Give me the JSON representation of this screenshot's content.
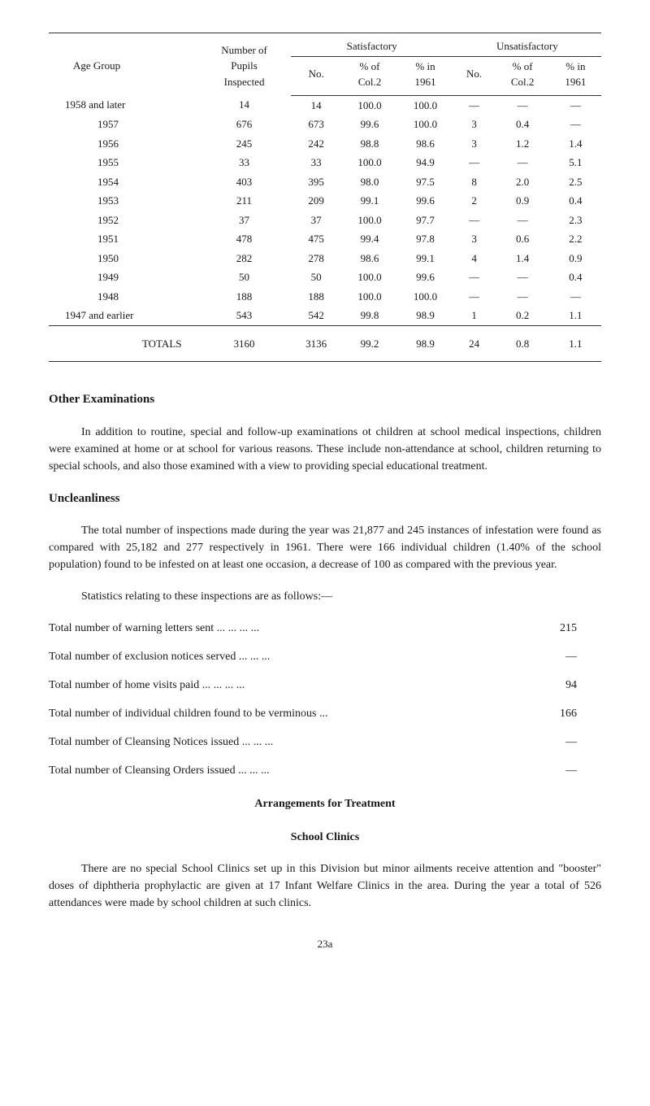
{
  "table": {
    "headers": {
      "age_group": "Age Group",
      "pupils": "Number of\nPupils\nInspected",
      "satisfactory": "Satisfactory",
      "unsatisfactory": "Unsatisfactory",
      "no": "No.",
      "pct_of": "% of\nCol.2",
      "pct_in": "% in\n1961"
    },
    "rows": [
      {
        "age": "1958 and later",
        "pupils": "14",
        "sat_no": "14",
        "sat_pct_of": "100.0",
        "sat_pct_in": "100.0",
        "unsat_no": "—",
        "unsat_pct_of": "—",
        "unsat_pct_in": "—"
      },
      {
        "age": "1957",
        "pupils": "676",
        "sat_no": "673",
        "sat_pct_of": "99.6",
        "sat_pct_in": "100.0",
        "unsat_no": "3",
        "unsat_pct_of": "0.4",
        "unsat_pct_in": "—"
      },
      {
        "age": "1956",
        "pupils": "245",
        "sat_no": "242",
        "sat_pct_of": "98.8",
        "sat_pct_in": "98.6",
        "unsat_no": "3",
        "unsat_pct_of": "1.2",
        "unsat_pct_in": "1.4"
      },
      {
        "age": "1955",
        "pupils": "33",
        "sat_no": "33",
        "sat_pct_of": "100.0",
        "sat_pct_in": "94.9",
        "unsat_no": "—",
        "unsat_pct_of": "—",
        "unsat_pct_in": "5.1"
      },
      {
        "age": "1954",
        "pupils": "403",
        "sat_no": "395",
        "sat_pct_of": "98.0",
        "sat_pct_in": "97.5",
        "unsat_no": "8",
        "unsat_pct_of": "2.0",
        "unsat_pct_in": "2.5"
      },
      {
        "age": "1953",
        "pupils": "211",
        "sat_no": "209",
        "sat_pct_of": "99.1",
        "sat_pct_in": "99.6",
        "unsat_no": "2",
        "unsat_pct_of": "0.9",
        "unsat_pct_in": "0.4"
      },
      {
        "age": "1952",
        "pupils": "37",
        "sat_no": "37",
        "sat_pct_of": "100.0",
        "sat_pct_in": "97.7",
        "unsat_no": "—",
        "unsat_pct_of": "—",
        "unsat_pct_in": "2.3"
      },
      {
        "age": "1951",
        "pupils": "478",
        "sat_no": "475",
        "sat_pct_of": "99.4",
        "sat_pct_in": "97.8",
        "unsat_no": "3",
        "unsat_pct_of": "0.6",
        "unsat_pct_in": "2.2"
      },
      {
        "age": "1950",
        "pupils": "282",
        "sat_no": "278",
        "sat_pct_of": "98.6",
        "sat_pct_in": "99.1",
        "unsat_no": "4",
        "unsat_pct_of": "1.4",
        "unsat_pct_in": "0.9"
      },
      {
        "age": "1949",
        "pupils": "50",
        "sat_no": "50",
        "sat_pct_of": "100.0",
        "sat_pct_in": "99.6",
        "unsat_no": "—",
        "unsat_pct_of": "—",
        "unsat_pct_in": "0.4"
      },
      {
        "age": "1948",
        "pupils": "188",
        "sat_no": "188",
        "sat_pct_of": "100.0",
        "sat_pct_in": "100.0",
        "unsat_no": "—",
        "unsat_pct_of": "—",
        "unsat_pct_in": "—"
      },
      {
        "age": "1947 and earlier",
        "pupils": "543",
        "sat_no": "542",
        "sat_pct_of": "99.8",
        "sat_pct_in": "98.9",
        "unsat_no": "1",
        "unsat_pct_of": "0.2",
        "unsat_pct_in": "1.1"
      }
    ],
    "totals": {
      "label": "TOTALS",
      "pupils": "3160",
      "sat_no": "3136",
      "sat_pct_of": "99.2",
      "sat_pct_in": "98.9",
      "unsat_no": "24",
      "unsat_pct_of": "0.8",
      "unsat_pct_in": "1.1"
    }
  },
  "sections": {
    "other_exams_title": "Other Examinations",
    "other_exams_text": "In addition to routine, special and follow-up examinations ot children at school medical inspections, children were examined at home or at school for various reasons. These include non-attendance at school, children returning to special schools, and also those examined with a view to providing special educational treatment.",
    "uncleanliness_title": "Uncleanliness",
    "uncleanliness_text": "The total number of inspections made during the year was 21,877 and 245 instances of infestation were found as compared with 25,182 and 277 respectively in 1961. There were 166 individual children (1.40% of the school population) found to be infested on at least one occasion, a decrease of 100 as compared with the previous year.",
    "stats_intro": "Statistics relating to these inspections are as follows:—",
    "arrangements_title": "Arrangements for Treatment",
    "school_clinics_title": "School Clinics",
    "clinics_text": "There are no special School Clinics set up in this Division but minor ailments receive attention and \"booster\" doses of diphtheria prophylactic are given at 17 Infant Welfare Clinics in the area. During the year a total of 526 attendances were made by school children at such clinics."
  },
  "stats": [
    {
      "label": "Total number of warning letters sent ...     ...     ...     ...",
      "value": "215"
    },
    {
      "label": "Total number of exclusion notices served     ...     ...     ...",
      "value": "—"
    },
    {
      "label": "Total number of home visits paid     ...     ...     ...     ...",
      "value": "94"
    },
    {
      "label": "Total number of individual children found to be verminous ...",
      "value": "166"
    },
    {
      "label": "Total number of Cleansing Notices issued ...     ...     ...",
      "value": "—"
    },
    {
      "label": "Total number of Cleansing Orders issued ...     ...     ...",
      "value": "—"
    }
  ],
  "page_number": "23a"
}
